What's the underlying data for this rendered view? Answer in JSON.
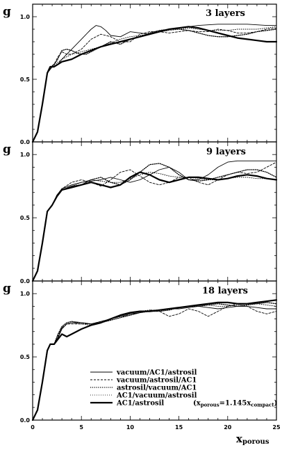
{
  "figure": {
    "xlabel_main": "x",
    "xlabel_sub": "porous",
    "xlim": [
      0,
      25
    ],
    "x_ticks": [
      "0",
      "5",
      "10",
      "15",
      "20",
      "25"
    ],
    "ylim": [
      0,
      1.1
    ],
    "y_ticks": [
      "0.0",
      "0.5",
      "1.0"
    ],
    "ylabel": "g"
  },
  "legend": {
    "entries": [
      {
        "label": "vacuum/AC1/astrosil",
        "style": "thin-solid"
      },
      {
        "label": "vacuum/astrosil/AC1",
        "style": "dashed"
      },
      {
        "label": "astrosil/vacuum/AC1",
        "style": "circles"
      },
      {
        "label": "AC1/vacuum/astrosil",
        "style": "triangles"
      },
      {
        "label": "AC1/astrosil",
        "style": "thick-solid",
        "suffix": "(x_porous=1.145x_compact)",
        "suffix_open": "(x",
        "suffix_sub1": "porous",
        "suffix_mid": "=1.145x",
        "suffix_sub2": "compact",
        "suffix_close": ")"
      }
    ]
  },
  "chart_data": [
    {
      "type": "line",
      "title": "3 layers",
      "ylabel": "g",
      "xlabel": "",
      "xlim": [
        0,
        25
      ],
      "ylim": [
        0,
        1.1
      ],
      "series": [
        {
          "name": "vacuum/AC1/astrosil",
          "style": "thin-solid",
          "x": [
            0,
            0.5,
            1,
            1.5,
            1.8,
            2.2,
            2.6,
            3,
            3.5,
            4,
            5,
            6,
            6.5,
            7,
            7.5,
            8,
            9,
            10,
            11,
            12,
            13,
            14,
            15,
            16,
            17,
            18,
            19,
            20,
            21,
            22,
            23,
            24,
            25
          ],
          "y": [
            0,
            0.08,
            0.3,
            0.55,
            0.6,
            0.6,
            0.62,
            0.66,
            0.7,
            0.74,
            0.82,
            0.9,
            0.93,
            0.92,
            0.89,
            0.85,
            0.84,
            0.88,
            0.87,
            0.86,
            0.88,
            0.9,
            0.91,
            0.92,
            0.93,
            0.935,
            0.94,
            0.94,
            0.94,
            0.94,
            0.935,
            0.93,
            0.93
          ]
        },
        {
          "name": "vacuum/astrosil/AC1",
          "style": "dashed",
          "x": [
            0,
            0.5,
            1,
            1.5,
            1.8,
            2.2,
            2.6,
            3,
            3.5,
            4,
            5,
            6,
            7,
            8,
            9,
            10,
            11,
            12,
            13,
            14,
            15,
            16,
            17,
            18,
            19,
            20,
            21,
            22,
            23,
            24,
            25
          ],
          "y": [
            0,
            0.08,
            0.3,
            0.55,
            0.6,
            0.62,
            0.68,
            0.72,
            0.7,
            0.7,
            0.74,
            0.82,
            0.86,
            0.84,
            0.8,
            0.8,
            0.86,
            0.88,
            0.88,
            0.87,
            0.88,
            0.89,
            0.88,
            0.88,
            0.9,
            0.89,
            0.87,
            0.87,
            0.88,
            0.9,
            0.91
          ]
        },
        {
          "name": "astrosil/vacuum/AC1",
          "style": "circles",
          "x": [
            0,
            0.5,
            1,
            1.5,
            2,
            2.5,
            3,
            3.5,
            4,
            4.5,
            5,
            5.5,
            6,
            7,
            8,
            9,
            10,
            11,
            12,
            13,
            14,
            15,
            16,
            17,
            18,
            19,
            20,
            21,
            22,
            23,
            24,
            25
          ],
          "y": [
            0,
            0.08,
            0.3,
            0.55,
            0.6,
            0.65,
            0.73,
            0.74,
            0.73,
            0.71,
            0.7,
            0.7,
            0.72,
            0.76,
            0.8,
            0.78,
            0.82,
            0.84,
            0.87,
            0.89,
            0.9,
            0.9,
            0.89,
            0.87,
            0.85,
            0.84,
            0.84,
            0.85,
            0.86,
            0.88,
            0.89,
            0.9
          ]
        },
        {
          "name": "AC1/vacuum/astrosil",
          "style": "triangles",
          "x": [
            0,
            0.5,
            1,
            1.5,
            2,
            2.5,
            3,
            4,
            5,
            6,
            7,
            8,
            9,
            10,
            11,
            12,
            13,
            14,
            15,
            16,
            17,
            18,
            19,
            20,
            21,
            22,
            23,
            24,
            25
          ],
          "y": [
            0,
            0.08,
            0.3,
            0.55,
            0.6,
            0.63,
            0.66,
            0.7,
            0.72,
            0.74,
            0.76,
            0.79,
            0.82,
            0.84,
            0.85,
            0.86,
            0.88,
            0.89,
            0.9,
            0.91,
            0.9,
            0.89,
            0.89,
            0.89,
            0.9,
            0.9,
            0.9,
            0.91,
            0.92
          ]
        },
        {
          "name": "AC1/astrosil",
          "style": "thick-solid",
          "x": [
            0,
            0.5,
            1,
            1.5,
            1.8,
            2.2,
            2.6,
            3,
            3.5,
            4,
            5,
            6,
            7,
            8,
            9,
            10,
            11,
            12,
            13,
            14,
            15,
            16,
            17,
            18,
            19,
            20,
            21,
            22,
            23,
            24,
            25
          ],
          "y": [
            0,
            0.08,
            0.3,
            0.55,
            0.6,
            0.6,
            0.62,
            0.64,
            0.65,
            0.66,
            0.7,
            0.73,
            0.76,
            0.78,
            0.8,
            0.82,
            0.84,
            0.86,
            0.88,
            0.9,
            0.91,
            0.92,
            0.91,
            0.89,
            0.87,
            0.85,
            0.83,
            0.82,
            0.81,
            0.8,
            0.8
          ]
        }
      ]
    },
    {
      "type": "line",
      "title": "9 layers",
      "ylabel": "g",
      "xlabel": "",
      "xlim": [
        0,
        25
      ],
      "ylim": [
        0,
        1.1
      ],
      "series": [
        {
          "name": "vacuum/AC1/astrosil",
          "style": "thin-solid",
          "x": [
            0,
            0.5,
            1,
            1.5,
            2,
            2.5,
            3,
            4,
            5,
            6,
            7,
            8,
            9,
            10,
            11,
            12,
            13,
            14,
            15,
            16,
            17,
            18,
            19,
            20,
            21,
            22,
            23,
            24,
            25
          ],
          "y": [
            0,
            0.08,
            0.3,
            0.55,
            0.6,
            0.68,
            0.73,
            0.76,
            0.78,
            0.79,
            0.8,
            0.82,
            0.8,
            0.78,
            0.8,
            0.84,
            0.88,
            0.9,
            0.86,
            0.8,
            0.8,
            0.84,
            0.9,
            0.94,
            0.95,
            0.95,
            0.95,
            0.95,
            0.95
          ]
        },
        {
          "name": "vacuum/astrosil/AC1",
          "style": "dashed",
          "x": [
            0,
            0.5,
            1,
            1.5,
            2,
            2.5,
            3,
            4,
            5,
            6,
            7,
            8,
            9,
            10,
            11,
            12,
            13,
            14,
            15,
            16,
            17,
            18,
            19,
            20,
            21,
            22,
            23,
            24,
            25
          ],
          "y": [
            0,
            0.08,
            0.3,
            0.55,
            0.6,
            0.68,
            0.73,
            0.78,
            0.8,
            0.78,
            0.75,
            0.8,
            0.86,
            0.88,
            0.83,
            0.78,
            0.76,
            0.78,
            0.82,
            0.82,
            0.78,
            0.76,
            0.8,
            0.84,
            0.86,
            0.85,
            0.86,
            0.9,
            0.94
          ]
        },
        {
          "name": "astrosil/vacuum/AC1",
          "style": "circles",
          "x": [
            0,
            0.5,
            1,
            1.5,
            2,
            2.5,
            3,
            4,
            5,
            6,
            7,
            8,
            9,
            10,
            11,
            12,
            13,
            14,
            15,
            16,
            17,
            18,
            19,
            20,
            21,
            22,
            23,
            24,
            25
          ],
          "y": [
            0,
            0.08,
            0.3,
            0.55,
            0.6,
            0.68,
            0.72,
            0.75,
            0.76,
            0.8,
            0.82,
            0.78,
            0.76,
            0.8,
            0.86,
            0.92,
            0.93,
            0.9,
            0.84,
            0.8,
            0.79,
            0.8,
            0.82,
            0.84,
            0.86,
            0.88,
            0.88,
            0.86,
            0.82
          ]
        },
        {
          "name": "AC1/vacuum/astrosil",
          "style": "triangles",
          "x": [
            0,
            0.5,
            1,
            1.5,
            2,
            2.5,
            3,
            4,
            5,
            6,
            7,
            8,
            9,
            10,
            11,
            12,
            13,
            14,
            15,
            16,
            17,
            18,
            19,
            20,
            21,
            22,
            23,
            24,
            25
          ],
          "y": [
            0,
            0.08,
            0.3,
            0.55,
            0.6,
            0.68,
            0.72,
            0.75,
            0.78,
            0.8,
            0.79,
            0.78,
            0.78,
            0.81,
            0.84,
            0.86,
            0.85,
            0.83,
            0.82,
            0.82,
            0.81,
            0.8,
            0.8,
            0.81,
            0.82,
            0.82,
            0.81,
            0.81,
            0.8
          ]
        },
        {
          "name": "AC1/astrosil",
          "style": "thick-solid",
          "x": [
            0,
            0.5,
            1,
            1.5,
            2,
            2.5,
            3,
            4,
            5,
            6,
            7,
            8,
            9,
            10,
            11,
            12,
            13,
            14,
            15,
            16,
            17,
            18,
            19,
            20,
            21,
            22,
            23,
            24,
            25
          ],
          "y": [
            0,
            0.08,
            0.3,
            0.55,
            0.6,
            0.67,
            0.72,
            0.74,
            0.76,
            0.78,
            0.76,
            0.74,
            0.76,
            0.82,
            0.86,
            0.84,
            0.8,
            0.78,
            0.8,
            0.82,
            0.82,
            0.81,
            0.8,
            0.81,
            0.83,
            0.84,
            0.83,
            0.81,
            0.8
          ]
        }
      ]
    },
    {
      "type": "line",
      "title": "18 layers",
      "ylabel": "g",
      "xlabel": "x_porous",
      "xlim": [
        0,
        25
      ],
      "ylim": [
        0,
        1.1
      ],
      "series": [
        {
          "name": "vacuum/AC1/astrosil",
          "style": "thin-solid",
          "x": [
            0,
            0.5,
            1,
            1.5,
            1.8,
            2.2,
            2.6,
            3,
            3.5,
            4,
            5,
            6,
            7,
            8,
            9,
            10,
            11,
            12,
            13,
            14,
            15,
            16,
            17,
            18,
            19,
            20,
            21,
            22,
            23,
            24,
            25
          ],
          "y": [
            0,
            0.08,
            0.3,
            0.55,
            0.6,
            0.6,
            0.65,
            0.72,
            0.76,
            0.77,
            0.77,
            0.76,
            0.78,
            0.8,
            0.82,
            0.84,
            0.85,
            0.86,
            0.87,
            0.88,
            0.88,
            0.89,
            0.9,
            0.89,
            0.88,
            0.89,
            0.9,
            0.9,
            0.89,
            0.88,
            0.88
          ]
        },
        {
          "name": "vacuum/astrosil/AC1",
          "style": "dashed",
          "x": [
            0,
            0.5,
            1,
            1.5,
            1.8,
            2.2,
            2.6,
            3,
            3.5,
            4,
            5,
            6,
            7,
            8,
            9,
            10,
            11,
            12,
            13,
            14,
            15,
            16,
            17,
            18,
            19,
            20,
            21,
            22,
            23,
            24,
            25
          ],
          "y": [
            0,
            0.08,
            0.3,
            0.55,
            0.6,
            0.6,
            0.66,
            0.73,
            0.76,
            0.76,
            0.76,
            0.76,
            0.78,
            0.8,
            0.82,
            0.83,
            0.85,
            0.87,
            0.86,
            0.82,
            0.84,
            0.88,
            0.86,
            0.82,
            0.86,
            0.9,
            0.92,
            0.9,
            0.86,
            0.84,
            0.86
          ]
        },
        {
          "name": "astrosil/vacuum/AC1",
          "style": "circles",
          "x": [
            0,
            0.5,
            1,
            1.5,
            1.8,
            2.2,
            2.6,
            3,
            3.5,
            4,
            5,
            6,
            7,
            8,
            9,
            10,
            11,
            12,
            13,
            14,
            15,
            16,
            17,
            18,
            19,
            20,
            21,
            22,
            23,
            24,
            25
          ],
          "y": [
            0,
            0.08,
            0.3,
            0.55,
            0.6,
            0.6,
            0.68,
            0.74,
            0.77,
            0.78,
            0.77,
            0.76,
            0.77,
            0.79,
            0.81,
            0.83,
            0.85,
            0.86,
            0.86,
            0.87,
            0.89,
            0.9,
            0.9,
            0.91,
            0.92,
            0.91,
            0.9,
            0.91,
            0.92,
            0.93,
            0.92
          ]
        },
        {
          "name": "AC1/vacuum/astrosil",
          "style": "triangles",
          "x": [
            0,
            0.5,
            1,
            1.5,
            1.8,
            2.2,
            2.6,
            3,
            3.5,
            4,
            5,
            6,
            7,
            8,
            9,
            10,
            11,
            12,
            13,
            14,
            15,
            16,
            17,
            18,
            19,
            20,
            21,
            22,
            23,
            24,
            25
          ],
          "y": [
            0,
            0.08,
            0.3,
            0.55,
            0.6,
            0.6,
            0.67,
            0.73,
            0.76,
            0.77,
            0.76,
            0.75,
            0.77,
            0.8,
            0.82,
            0.84,
            0.86,
            0.87,
            0.87,
            0.88,
            0.89,
            0.9,
            0.91,
            0.91,
            0.9,
            0.9,
            0.91,
            0.92,
            0.92,
            0.91,
            0.9
          ]
        },
        {
          "name": "AC1/astrosil",
          "style": "thick-solid",
          "x": [
            0,
            0.5,
            1,
            1.5,
            1.8,
            2.2,
            2.6,
            3,
            3.5,
            4,
            5,
            6,
            7,
            8,
            9,
            10,
            11,
            12,
            13,
            14,
            15,
            16,
            17,
            18,
            19,
            20,
            21,
            22,
            23,
            24,
            25
          ],
          "y": [
            0,
            0.08,
            0.3,
            0.55,
            0.6,
            0.6,
            0.64,
            0.68,
            0.66,
            0.68,
            0.72,
            0.75,
            0.77,
            0.8,
            0.83,
            0.85,
            0.86,
            0.86,
            0.87,
            0.88,
            0.89,
            0.9,
            0.91,
            0.92,
            0.93,
            0.93,
            0.92,
            0.92,
            0.93,
            0.94,
            0.95
          ]
        }
      ]
    }
  ]
}
